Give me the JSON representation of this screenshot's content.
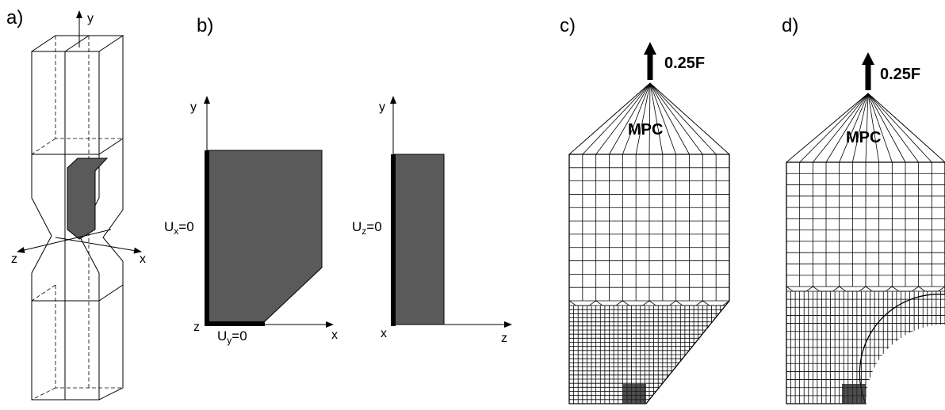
{
  "panels": [
    {
      "label": "a)",
      "axes": {
        "y": "y",
        "z": "z",
        "x": "x"
      }
    },
    {
      "label": "b)",
      "view_xy": {
        "y": "y",
        "x": "x",
        "origin": "z",
        "constraints": [
          {
            "symbol": "U",
            "subscript": "x",
            "value": "=0"
          },
          {
            "symbol": "U",
            "subscript": "y",
            "value": "=0"
          }
        ]
      },
      "view_zy": {
        "y": "y",
        "z": "z",
        "origin": "x",
        "constraints": [
          {
            "symbol": "U",
            "subscript": "z",
            "value": "=0"
          }
        ]
      }
    },
    {
      "label": "c)",
      "load": "0.25F",
      "constraint": "MPC"
    },
    {
      "label": "d)",
      "load": "0.25F",
      "constraint": "MPC"
    }
  ]
}
